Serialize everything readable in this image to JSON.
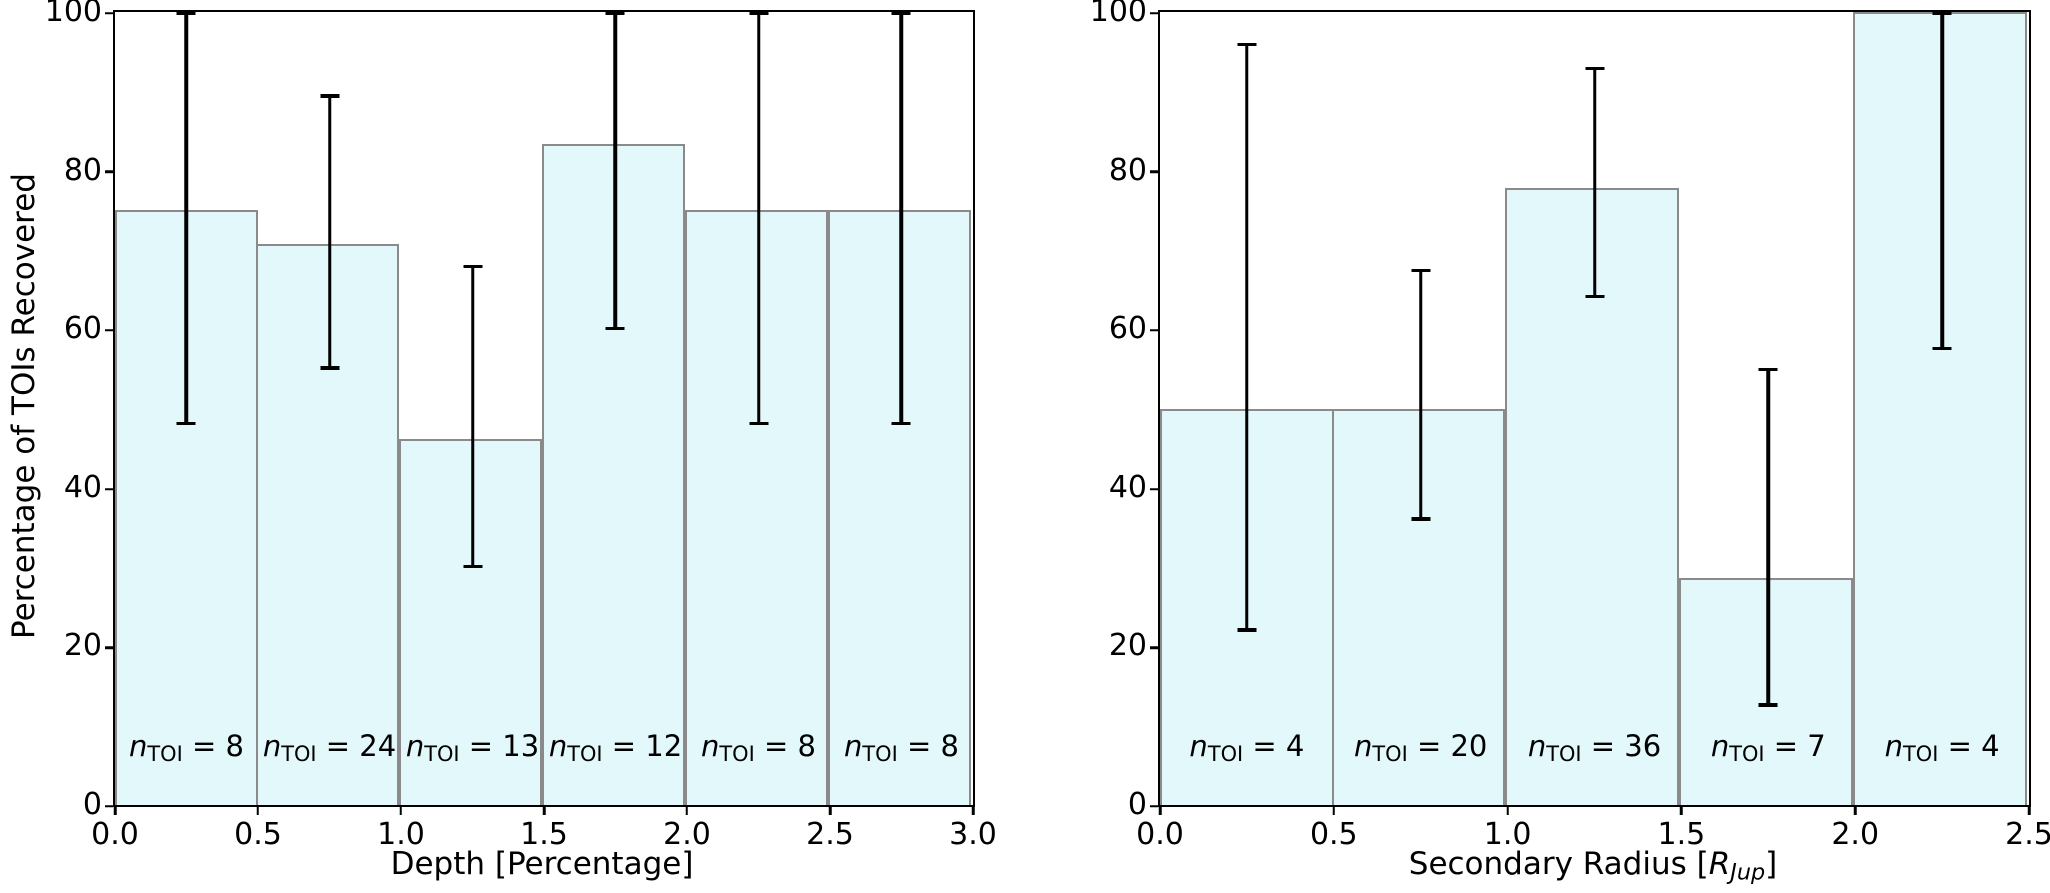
{
  "styles": {
    "bar_fill": "#e2f8fb",
    "bar_edge": "#8a8a8a",
    "error_color": "#000000",
    "axis_color": "#000000"
  },
  "chart_data": [
    {
      "type": "bar",
      "panel": "left",
      "title": "",
      "xlabel_parts": [
        {
          "t": "Depth [Percentage]",
          "s": "plain"
        }
      ],
      "ylabel": "Percentage of TOIs Recovered",
      "xlim": [
        0,
        3.0
      ],
      "ylim": [
        0,
        100
      ],
      "grid": false,
      "legend": null,
      "bin_edges": [
        0,
        0.5,
        1.0,
        1.5,
        2.0,
        2.5,
        3.0
      ],
      "values": [
        75.0,
        70.8,
        46.2,
        83.3,
        75.0,
        75.0
      ],
      "err_low": [
        48,
        55,
        30,
        60,
        48,
        48
      ],
      "err_high": [
        100,
        89.5,
        68,
        100,
        100,
        100
      ],
      "n_toi": [
        8,
        24,
        13,
        12,
        8,
        8
      ],
      "n_label": {
        "pre": "n",
        "sub": "TOI",
        "eq": " = "
      },
      "xticks": [
        [
          0,
          "0.0"
        ],
        [
          0.5,
          "0.5"
        ],
        [
          1,
          "1.0"
        ],
        [
          1.5,
          "1.5"
        ],
        [
          2,
          "2.0"
        ],
        [
          2.5,
          "2.5"
        ],
        [
          3,
          "3.0"
        ]
      ],
      "yticks": [
        [
          0,
          "0"
        ],
        [
          20,
          "20"
        ],
        [
          40,
          "40"
        ],
        [
          60,
          "60"
        ],
        [
          80,
          "80"
        ],
        [
          100,
          "100"
        ]
      ]
    },
    {
      "type": "bar",
      "panel": "right",
      "title": "",
      "xlabel_parts": [
        {
          "t": "Secondary Radius [",
          "s": "plain"
        },
        {
          "t": "R",
          "s": "i"
        },
        {
          "t": "Jup",
          "s": "isub"
        },
        {
          "t": "]",
          "s": "plain"
        }
      ],
      "ylabel": "",
      "xlim": [
        0,
        2.5
      ],
      "ylim": [
        0,
        100
      ],
      "grid": false,
      "legend": null,
      "bin_edges": [
        0,
        0.5,
        1.0,
        1.5,
        2.0,
        2.5
      ],
      "values": [
        50.0,
        50.0,
        77.8,
        28.6,
        100.0
      ],
      "err_low": [
        22,
        36,
        64,
        12.5,
        57.5
      ],
      "err_high": [
        96,
        67.5,
        93,
        55,
        100
      ],
      "n_toi": [
        4,
        20,
        36,
        7,
        4
      ],
      "n_label": {
        "pre": "n",
        "sub": "TOI",
        "eq": " = "
      },
      "xticks": [
        [
          0,
          "0.0"
        ],
        [
          0.5,
          "0.5"
        ],
        [
          1,
          "1.0"
        ],
        [
          1.5,
          "1.5"
        ],
        [
          2,
          "2.0"
        ],
        [
          2.5,
          "2.5"
        ]
      ],
      "yticks": [
        [
          0,
          "0"
        ],
        [
          20,
          "20"
        ],
        [
          40,
          "40"
        ],
        [
          60,
          "60"
        ],
        [
          80,
          "80"
        ],
        [
          100,
          "100"
        ]
      ]
    }
  ]
}
